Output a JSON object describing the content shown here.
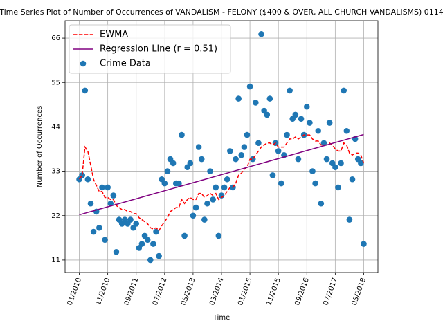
{
  "chart_data": {
    "type": "scatter",
    "title": "Time Series Plot of Number of Occurrences of VANDALISM - FELONY ($400 & OVER, ALL CHURCH VANDALISMS) 0114",
    "x_label": "Time",
    "y_label": "Number of Occurrences",
    "x": [
      "01/2010",
      "02/2010",
      "03/2010",
      "04/2010",
      "05/2010",
      "06/2010",
      "07/2010",
      "08/2010",
      "09/2010",
      "10/2010",
      "11/2010",
      "12/2010",
      "01/2011",
      "02/2011",
      "03/2011",
      "04/2011",
      "05/2011",
      "06/2011",
      "07/2011",
      "08/2011",
      "09/2011",
      "10/2011",
      "11/2011",
      "12/2011",
      "01/2012",
      "02/2012",
      "03/2012",
      "04/2012",
      "05/2012",
      "06/2012",
      "07/2012",
      "08/2012",
      "09/2012",
      "10/2012",
      "11/2012",
      "12/2012",
      "01/2013",
      "02/2013",
      "03/2013",
      "04/2013",
      "05/2013",
      "06/2013",
      "07/2013",
      "08/2013",
      "09/2013",
      "10/2013",
      "11/2013",
      "12/2013",
      "01/2014",
      "02/2014",
      "03/2014",
      "04/2014",
      "05/2014",
      "06/2014",
      "07/2014",
      "08/2014",
      "09/2014",
      "10/2014",
      "11/2014",
      "12/2014",
      "01/2015",
      "02/2015",
      "03/2015",
      "04/2015",
      "05/2015",
      "06/2015",
      "07/2015",
      "08/2015",
      "09/2015",
      "10/2015",
      "11/2015",
      "12/2015",
      "01/2016",
      "02/2016",
      "03/2016",
      "04/2016",
      "05/2016",
      "06/2016",
      "07/2016",
      "08/2016",
      "09/2016",
      "10/2016",
      "11/2016",
      "12/2016",
      "01/2017",
      "02/2017",
      "03/2017",
      "04/2017",
      "05/2017",
      "06/2017",
      "07/2017",
      "08/2017",
      "09/2017",
      "10/2017",
      "11/2017",
      "12/2017",
      "01/2018",
      "02/2018",
      "03/2018",
      "04/2018",
      "05/2018"
    ],
    "series": [
      {
        "name": "EWMA",
        "type": "line",
        "color": "#ff0000",
        "dashed": true,
        "values": [
          31,
          32,
          39,
          38,
          34.5,
          31,
          29.5,
          28,
          28,
          26.5,
          26.5,
          26,
          26,
          24.5,
          24,
          23.5,
          23.5,
          23,
          23,
          22.5,
          22.5,
          21.5,
          21,
          20.5,
          20,
          19,
          18.7,
          19,
          18.3,
          19.5,
          20.5,
          21.5,
          23,
          23.5,
          24,
          24,
          26,
          25,
          26,
          26.5,
          26,
          26,
          27.5,
          27.5,
          26.5,
          27,
          27.5,
          27,
          27.5,
          26,
          26.5,
          27,
          28,
          29,
          29,
          30,
          32,
          32.5,
          33.5,
          34,
          36,
          36,
          37,
          38,
          39,
          39.5,
          40,
          40,
          39.5,
          40,
          39,
          39,
          39,
          40,
          41,
          41,
          41.5,
          41,
          41.5,
          42,
          42,
          42,
          41,
          40.5,
          40.5,
          39.5,
          39.5,
          39.5,
          40,
          39.5,
          38.5,
          38,
          38,
          40,
          39.5,
          37.5,
          37,
          37.5,
          37.5,
          37,
          35
        ]
      },
      {
        "name": "Regression Line (r = 0.51)",
        "type": "line",
        "color": "#800080",
        "dashed": false,
        "x": [
          "01/2010",
          "05/2018"
        ],
        "values": [
          22.2,
          42.1
        ]
      },
      {
        "name": "Crime Data",
        "type": "scatter",
        "color": "#1f77b4",
        "values": [
          31,
          32,
          53,
          31,
          25,
          18,
          23,
          19,
          29,
          16,
          29,
          25,
          27,
          13,
          21,
          20,
          21,
          20,
          21,
          19,
          20,
          14,
          15,
          17,
          16,
          11,
          15,
          18,
          12,
          31,
          30,
          33,
          36,
          35,
          30,
          30,
          42,
          17,
          34,
          35,
          22,
          24,
          39,
          36,
          21,
          25,
          33,
          26,
          29,
          17,
          27,
          29,
          31,
          38,
          29,
          36,
          51,
          37,
          39,
          42,
          54,
          36,
          50,
          40,
          67,
          48,
          47,
          51,
          32,
          40,
          38,
          30,
          37,
          42,
          53,
          46,
          47,
          36,
          46,
          42,
          49,
          45,
          33,
          30,
          43,
          25,
          40,
          36,
          45,
          35,
          34,
          29,
          35,
          53,
          43,
          21,
          31,
          41,
          36,
          35,
          15
        ]
      }
    ],
    "xlim": [
      "08/2009",
      "10/2018"
    ],
    "xticks": [
      "01/2010",
      "11/2010",
      "09/2011",
      "07/2012",
      "05/2013",
      "03/2014",
      "01/2015",
      "11/2015",
      "09/2016",
      "07/2017",
      "05/2018"
    ],
    "ylim": [
      7.9,
      70.3
    ],
    "yticks": [
      11,
      22,
      33,
      44,
      55,
      66
    ],
    "grid": true,
    "legend": "upper left"
  }
}
